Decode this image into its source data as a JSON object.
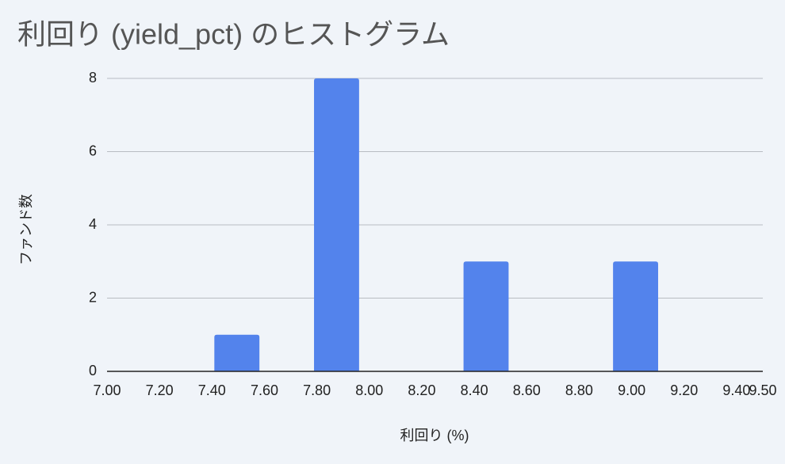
{
  "chart_data": {
    "type": "histogram",
    "title": "利回り (yield_pct) のヒストグラム",
    "x_label": "利回り (%)",
    "y_label": "ファンド数",
    "bins": [
      7.4,
      7.59,
      7.78,
      7.97,
      8.16,
      8.35,
      8.54,
      8.73,
      8.92,
      9.11
    ],
    "values": [
      1,
      0,
      8,
      0,
      0,
      3,
      0,
      0,
      3
    ],
    "color": "#5383ec",
    "xlim": [
      7.0,
      9.5
    ],
    "xticks": [
      {
        "value": 7.0,
        "label": "7.00"
      },
      {
        "value": 7.2,
        "label": "7.20"
      },
      {
        "value": 7.4,
        "label": "7.40"
      },
      {
        "value": 7.6,
        "label": "7.60"
      },
      {
        "value": 7.8,
        "label": "7.80"
      },
      {
        "value": 8.0,
        "label": "8.00"
      },
      {
        "value": 8.2,
        "label": "8.20"
      },
      {
        "value": 8.4,
        "label": "8.40"
      },
      {
        "value": 8.6,
        "label": "8.60"
      },
      {
        "value": 8.8,
        "label": "8.80"
      },
      {
        "value": 9.0,
        "label": "9.00"
      },
      {
        "value": 9.2,
        "label": "9.20"
      },
      {
        "value": 9.4,
        "label": "9.40"
      },
      {
        "value": 9.5,
        "label": "9.50"
      }
    ],
    "ylim": [
      0,
      8
    ],
    "yticks": [
      0,
      2,
      4,
      6,
      8
    ],
    "grid": true
  }
}
